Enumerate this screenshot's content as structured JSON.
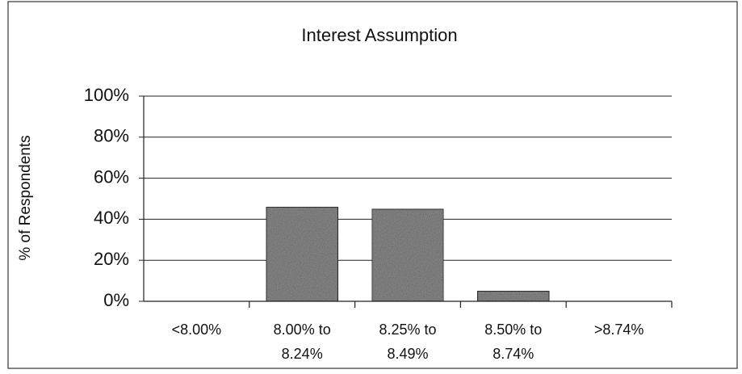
{
  "chart_data": {
    "type": "bar",
    "title": "Interest Assumption",
    "y_label": "% of Respondents",
    "categories": [
      "<8.00%",
      "8.00% to\n8.24%",
      "8.25% to\n8.49%",
      "8.50% to\n8.74%",
      ">8.74%"
    ],
    "values": [
      0,
      46,
      45,
      5,
      0
    ],
    "color": "#8c8c8c",
    "ylim": [
      0,
      100
    ],
    "yticks": [
      {
        "value": 0,
        "label": "0%"
      },
      {
        "value": 20,
        "label": "20%"
      },
      {
        "value": 40,
        "label": "40%"
      },
      {
        "value": 60,
        "label": "60%"
      },
      {
        "value": 80,
        "label": "80%"
      },
      {
        "value": 100,
        "label": "100%"
      }
    ],
    "grid": true
  }
}
